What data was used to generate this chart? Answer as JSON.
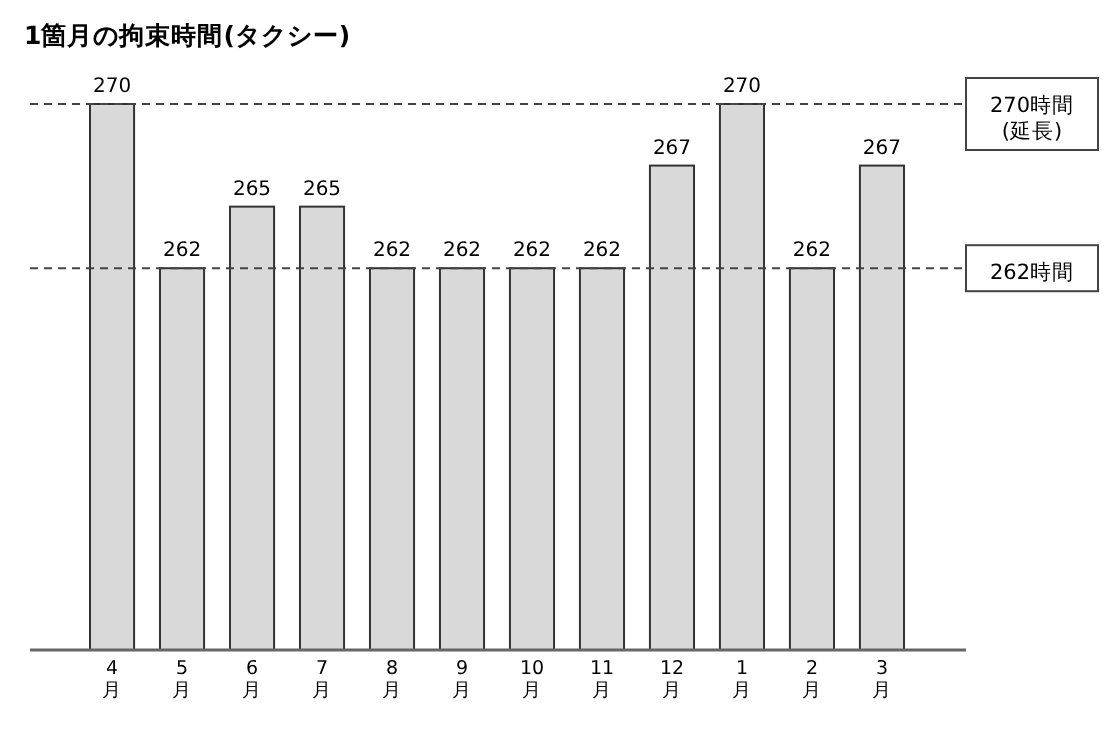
{
  "chart_data": {
    "type": "bar",
    "title": "1箇月の拘束時間(タクシー)",
    "categories": [
      "4月",
      "5月",
      "6月",
      "7月",
      "8月",
      "9月",
      "10月",
      "11月",
      "12月",
      "1月",
      "2月",
      "3月"
    ],
    "values": [
      270,
      262,
      265,
      265,
      262,
      262,
      262,
      262,
      267,
      270,
      262,
      267
    ],
    "color": "#d9d9d9",
    "data_labels": true,
    "ylim": [
      243.4,
      270
    ],
    "tick_labels": "x",
    "ref_lines": [
      {
        "axis": "y",
        "value": 270,
        "label": "270時間\n(延長)",
        "line_style": "dashed"
      },
      {
        "axis": "y",
        "value": 262,
        "label": "262時間",
        "line_style": "dashed"
      }
    ]
  }
}
